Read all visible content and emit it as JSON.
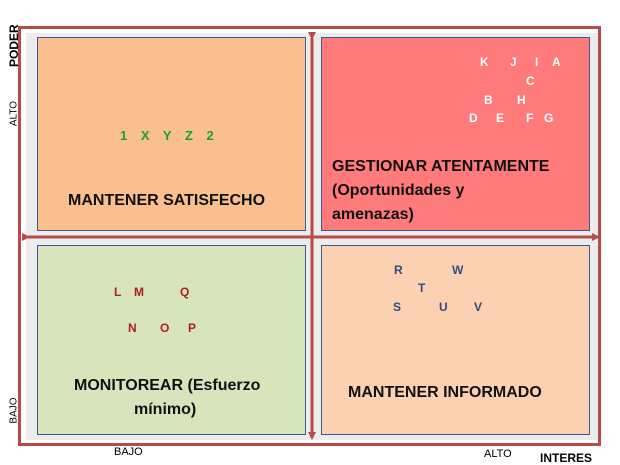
{
  "axes": {
    "y_title": "PODER",
    "y_high": "ALTO",
    "y_low": "BAJO",
    "x_low": "BAJO",
    "x_high": "ALTO",
    "x_title": "INTERES"
  },
  "quadrants": {
    "top_left": {
      "title": "MANTENER SATISFECHO",
      "items_line1": "1 X Y Z 2"
    },
    "top_right": {
      "title_line1": "GESTIONAR ATENTAMENTE",
      "title_line2": "(Oportunidades y",
      "title_line3": "amenazas)",
      "letters": [
        "K",
        "J",
        "I",
        "A",
        "C",
        "B",
        "H",
        "D",
        "E",
        "F",
        "G"
      ]
    },
    "bottom_left": {
      "title_line1": "MONITOREAR (Esfuerzo",
      "title_line2": "mínimo)",
      "letters": [
        "L",
        "M",
        "Q",
        "N",
        "O",
        "P"
      ]
    },
    "bottom_right": {
      "title": "MANTENER INFORMADO",
      "letters": [
        "R",
        "W",
        "T",
        "S",
        "U",
        "V"
      ]
    }
  },
  "colors": {
    "top_left_fill": "#f9bf8e",
    "top_right_fill": "#ff7b7b",
    "bottom_left_fill": "#d8e4bc",
    "bottom_right_fill": "#fcd1b2",
    "frame": "#b94a4a",
    "quadrant_border": "#3a5a9a",
    "green_items": "#1aa329",
    "red_items": "#b01e1e",
    "blue_items": "#2e4d86",
    "white_items": "#ffffff"
  }
}
